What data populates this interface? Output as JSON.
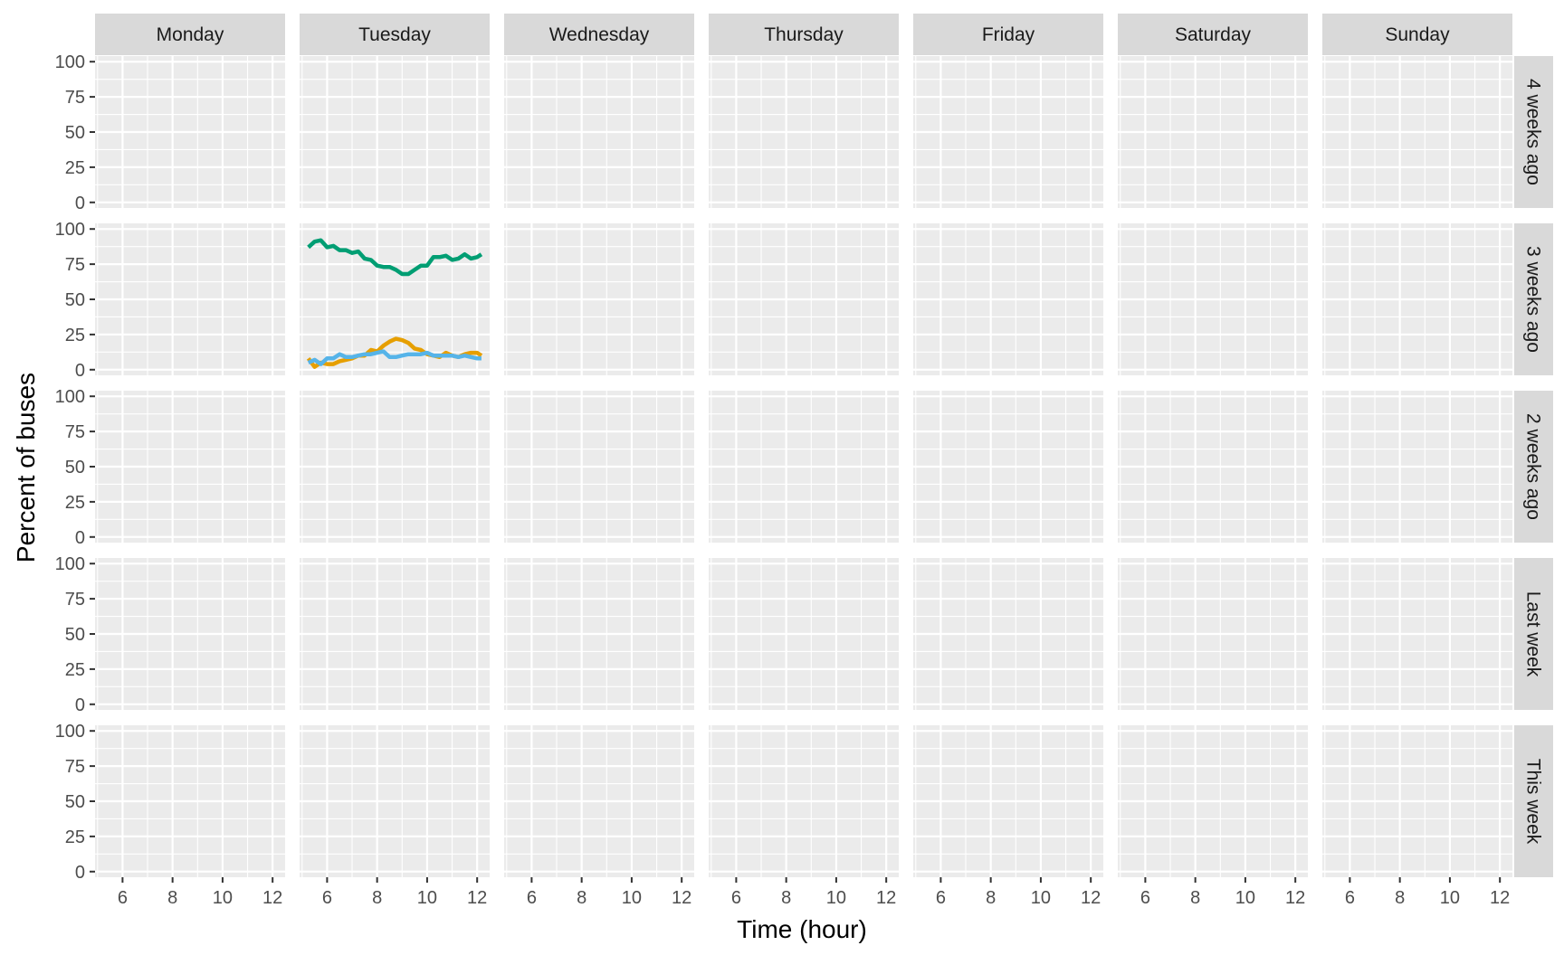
{
  "chart_data": {
    "type": "line",
    "title": "",
    "xlabel": "Time (hour)",
    "ylabel": "Percent of buses",
    "facet_columns": [
      "Monday",
      "Tuesday",
      "Wednesday",
      "Thursday",
      "Friday",
      "Saturday",
      "Sunday"
    ],
    "facet_rows": [
      "4 weeks ago",
      "3 weeks ago",
      "2 weeks ago",
      "Last week",
      "This week"
    ],
    "xlim": [
      4.9,
      12.5
    ],
    "ylim": [
      -4,
      104
    ],
    "x_ticks": [
      6,
      8,
      10,
      12
    ],
    "y_ticks": [
      0,
      25,
      50,
      75,
      100
    ],
    "grid": true,
    "series": [
      {
        "color": "#009E73",
        "facet": {
          "column": "Tuesday",
          "row": "3 weeks ago"
        },
        "x": [
          5.25,
          5.5,
          5.75,
          6.0,
          6.25,
          6.5,
          6.75,
          7.0,
          7.25,
          7.5,
          7.75,
          8.0,
          8.25,
          8.5,
          8.75,
          9.0,
          9.25,
          9.5,
          9.75,
          10.0,
          10.25,
          10.5,
          10.75,
          11.0,
          11.25,
          11.5,
          11.75,
          12.0,
          12.17
        ],
        "y": [
          87,
          91,
          92,
          87,
          88,
          85,
          85,
          83,
          84,
          79,
          78,
          74,
          73,
          73,
          71,
          68,
          68,
          71,
          74,
          74,
          80,
          80,
          81,
          78,
          79,
          82,
          79,
          80,
          82
        ]
      },
      {
        "color": "#E69F00",
        "facet": {
          "column": "Tuesday",
          "row": "3 weeks ago"
        },
        "x": [
          5.25,
          5.5,
          5.75,
          6.0,
          6.25,
          6.5,
          6.75,
          7.0,
          7.25,
          7.5,
          7.75,
          8.0,
          8.25,
          8.5,
          8.75,
          9.0,
          9.25,
          9.5,
          9.75,
          10.0,
          10.25,
          10.5,
          10.75,
          11.0,
          11.25,
          11.5,
          11.75,
          12.0,
          12.17
        ],
        "y": [
          8,
          2,
          5,
          4,
          4,
          6,
          7,
          8,
          10,
          10,
          14,
          13,
          17,
          20,
          22,
          21,
          19,
          15,
          14,
          11,
          10,
          9,
          12,
          10,
          9,
          11,
          12,
          12,
          10
        ]
      },
      {
        "color": "#56B4E9",
        "facet": {
          "column": "Tuesday",
          "row": "3 weeks ago"
        },
        "x": [
          5.25,
          5.5,
          5.75,
          6.0,
          6.25,
          6.5,
          6.75,
          7.0,
          7.25,
          7.5,
          7.75,
          8.0,
          8.25,
          8.5,
          8.75,
          9.0,
          9.25,
          9.5,
          9.75,
          10.0,
          10.25,
          10.5,
          10.75,
          11.0,
          11.25,
          11.5,
          11.75,
          12.0,
          12.17
        ],
        "y": [
          5,
          7,
          4,
          8,
          8,
          11,
          9,
          9,
          10,
          11,
          11,
          12,
          13,
          9,
          9,
          10,
          11,
          11,
          11,
          12,
          10,
          10,
          10,
          10,
          9,
          10,
          9,
          8,
          8
        ]
      }
    ]
  }
}
